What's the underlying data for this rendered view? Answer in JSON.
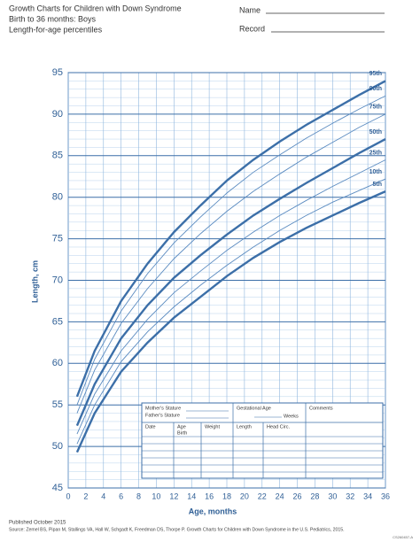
{
  "header": {
    "title": "Growth Charts for Children with Down Syndrome",
    "subtitle": "Birth to 36 months: Boys",
    "subtitle2": "Length-for-age percentiles",
    "name_label": "Name",
    "record_label": "Record"
  },
  "chart_data": {
    "type": "line",
    "x": [
      1,
      3,
      6,
      9,
      12,
      15,
      18,
      21,
      24,
      27,
      30,
      33,
      36
    ],
    "xlabel": "Age, months",
    "ylabel": "Length, cm",
    "xlim": [
      0,
      36
    ],
    "xticks": [
      0,
      2,
      4,
      6,
      8,
      10,
      12,
      14,
      16,
      18,
      20,
      22,
      24,
      26,
      28,
      30,
      32,
      34,
      36
    ],
    "ylim": [
      45,
      95
    ],
    "yticks": [
      45,
      50,
      55,
      60,
      65,
      70,
      75,
      80,
      85,
      90,
      95
    ],
    "yminor": [
      46,
      47,
      48,
      49,
      51,
      52,
      53,
      54,
      56,
      57,
      58,
      59,
      61,
      62,
      63,
      64,
      66,
      67,
      68,
      69,
      71,
      72,
      73,
      74,
      76,
      77,
      78,
      79,
      81,
      82,
      83,
      84,
      86,
      87,
      88,
      89,
      91,
      92,
      93,
      94
    ],
    "grid": true,
    "series": [
      {
        "name": "95th",
        "color": "#3c6fa8",
        "bold": true,
        "values": [
          56,
          61.5,
          67.5,
          72,
          75.8,
          79,
          82,
          84.5,
          86.7,
          88.7,
          90.5,
          92.3,
          94
        ]
      },
      {
        "name": "90th",
        "color": "#5b8bc0",
        "bold": false,
        "values": [
          55,
          60.5,
          66.3,
          70.8,
          74.5,
          77.6,
          80.5,
          83,
          85.1,
          87.1,
          88.9,
          90.6,
          92.2
        ]
      },
      {
        "name": "75th",
        "color": "#5b8bc0",
        "bold": false,
        "values": [
          54,
          59.2,
          64.8,
          69,
          72.6,
          75.6,
          78.3,
          80.7,
          82.8,
          84.8,
          86.6,
          88.4,
          90
        ]
      },
      {
        "name": "50th",
        "color": "#3c6fa8",
        "bold": true,
        "values": [
          52.5,
          57.5,
          63,
          67,
          70.3,
          73,
          75.5,
          77.8,
          79.8,
          81.7,
          83.5,
          85.3,
          87
        ]
      },
      {
        "name": "25th",
        "color": "#5b8bc0",
        "bold": false,
        "values": [
          51.5,
          56.3,
          61.5,
          65.3,
          68.5,
          71.1,
          73.6,
          75.8,
          77.8,
          79.6,
          81.3,
          82.9,
          84.5
        ]
      },
      {
        "name": "10th",
        "color": "#5b8bc0",
        "bold": false,
        "values": [
          50.3,
          55,
          60.2,
          63.8,
          66.8,
          69.4,
          71.8,
          74,
          76,
          77.8,
          79.4,
          80.8,
          82.2
        ]
      },
      {
        "name": "5th",
        "color": "#3c6fa8",
        "bold": true,
        "values": [
          49.3,
          54,
          59,
          62.5,
          65.5,
          68,
          70.5,
          72.7,
          74.6,
          76.3,
          77.8,
          79.3,
          80.7
        ]
      }
    ]
  },
  "form": {
    "mother": "Mother's Stature",
    "father": "Father's Stature",
    "gestational": "Gestational Age",
    "weeks": "Weeks",
    "comments": "Comments",
    "columns": [
      "Date",
      "Age",
      "Weight",
      "Length",
      "Head Circ."
    ],
    "age_sub": "Birth"
  },
  "footer": {
    "published": "Published October 2015",
    "source": "Source: Zemel BS, Pipan M, Stallings VA, Hall W, Schgadt K, Freedman DS, Thorpe P. Growth Charts for Children with Down Syndrome in the U.S. Pediatrics, 2015.",
    "code": "CS260457-A"
  }
}
